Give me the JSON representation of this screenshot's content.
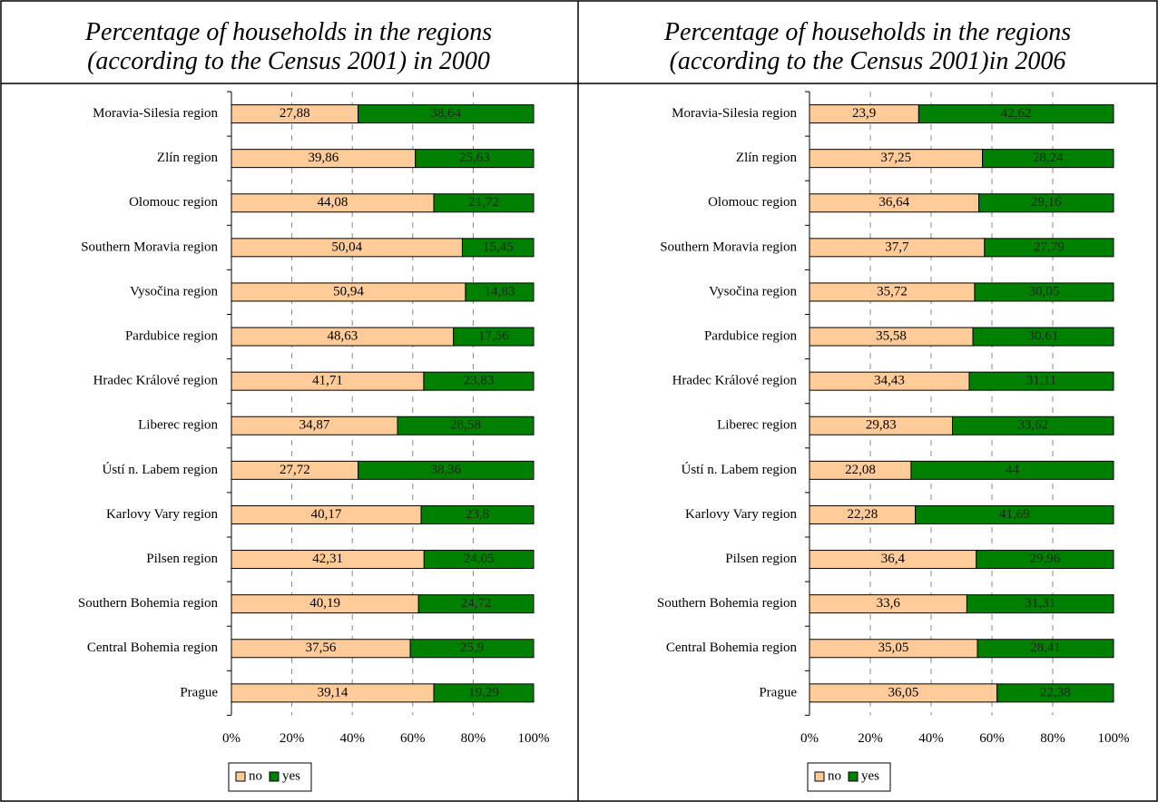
{
  "chart_data": [
    {
      "type": "bar",
      "stacked": "percent",
      "orientation": "horizontal",
      "title": "Percentage of households in the regions\n(according to the Census 2001) in 2000",
      "categories": [
        "Moravia-Silesia region",
        "Zlín region",
        "Olomouc region",
        "Southern Moravia region",
        "Vysočina region",
        "Pardubice region",
        "Hradec Králové region",
        "Liberec region",
        "Ústí n. Labem region",
        "Karlovy Vary region",
        "Pilsen region",
        "Southern Bohemia region",
        "Central Bohemia region",
        "Prague"
      ],
      "series": [
        {
          "name": "no",
          "color": "#ffcc99",
          "values": [
            27.88,
            39.86,
            44.08,
            50.04,
            50.94,
            48.63,
            41.71,
            34.87,
            27.72,
            40.17,
            42.31,
            40.19,
            37.56,
            39.14
          ],
          "value_labels": [
            "27,88",
            "39,86",
            "44,08",
            "50,04",
            "50,94",
            "48,63",
            "41,71",
            "34,87",
            "27,72",
            "40,17",
            "42,31",
            "40,19",
            "37,56",
            "39,14"
          ]
        },
        {
          "name": "yes",
          "color": "#008000",
          "values": [
            38.64,
            25.63,
            21.72,
            15.45,
            14.83,
            17.56,
            23.83,
            28.58,
            38.36,
            23.8,
            24.05,
            24.72,
            25.9,
            19.29
          ],
          "value_labels": [
            "38,64",
            "25,63",
            "21,72",
            "15,45",
            "14,83",
            "17,56",
            "23,83",
            "28,58",
            "38,36",
            "23,8",
            "24,05",
            "24,72",
            "25,9",
            "19,29"
          ]
        }
      ],
      "xlim": [
        0,
        100
      ],
      "xticks": [
        {
          "value": 0,
          "label": "0%"
        },
        {
          "value": 20,
          "label": "20%"
        },
        {
          "value": 40,
          "label": "40%"
        },
        {
          "value": 60,
          "label": "60%"
        },
        {
          "value": 80,
          "label": "80%"
        },
        {
          "value": 100,
          "label": "100%"
        }
      ],
      "grid": true,
      "legend": "bottom"
    },
    {
      "type": "bar",
      "stacked": "percent",
      "orientation": "horizontal",
      "title": "Percentage of households in the regions\n(according to the Census 2001)in 2006",
      "categories": [
        "Moravia-Silesia region",
        "Zlín region",
        "Olomouc region",
        "Southern Moravia region",
        "Vysočina region",
        "Pardubice region",
        "Hradec Králové region",
        "Liberec region",
        "Ústí n. Labem region",
        "Karlovy Vary region",
        "Pilsen region",
        "Southern Bohemia region",
        "Central Bohemia region",
        "Prague"
      ],
      "series": [
        {
          "name": "no",
          "color": "#ffcc99",
          "values": [
            23.9,
            37.25,
            36.64,
            37.7,
            35.72,
            35.58,
            34.43,
            29.83,
            22.08,
            22.28,
            36.4,
            33.6,
            35.05,
            36.05
          ],
          "value_labels": [
            "23,9",
            "37,25",
            "36,64",
            "37,7",
            "35,72",
            "35,58",
            "34,43",
            "29,83",
            "22,08",
            "22,28",
            "36,4",
            "33,6",
            "35,05",
            "36,05"
          ]
        },
        {
          "name": "yes",
          "color": "#008000",
          "values": [
            42.62,
            28.24,
            29.16,
            27.79,
            30.05,
            30.61,
            31.11,
            33.62,
            44,
            41.69,
            29.96,
            31.31,
            28.41,
            22.38
          ],
          "value_labels": [
            "42,62",
            "28,24",
            "29,16",
            "27,79",
            "30,05",
            "30,61",
            "31,11",
            "33,62",
            "44",
            "41,69",
            "29,96",
            "31,31",
            "28,41",
            "22,38"
          ]
        }
      ],
      "xlim": [
        0,
        100
      ],
      "xticks": [
        {
          "value": 0,
          "label": "0%"
        },
        {
          "value": 20,
          "label": "20%"
        },
        {
          "value": 40,
          "label": "40%"
        },
        {
          "value": 60,
          "label": "60%"
        },
        {
          "value": 80,
          "label": "80%"
        },
        {
          "value": 100,
          "label": "100%"
        }
      ],
      "grid": true,
      "legend": "bottom"
    }
  ]
}
